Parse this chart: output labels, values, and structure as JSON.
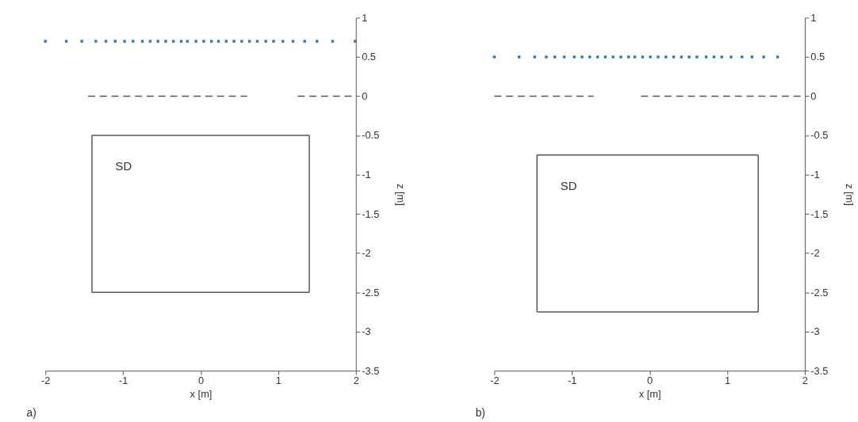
{
  "chart_data": [
    {
      "type": "scatter",
      "xlabel": "x [m]",
      "ylabel": "z [m]",
      "xlim": [
        -2,
        2
      ],
      "ylim": [
        -3.5,
        1
      ],
      "xticks": [
        -2,
        -1,
        0,
        1,
        2
      ],
      "yticks": [
        1,
        0.5,
        0,
        -0.5,
        -1,
        -1.5,
        -2,
        -2.5,
        -3,
        -3.5
      ],
      "grid": false,
      "series": [
        {
          "marker": "square",
          "color": "#2a7ab9",
          "x": [
            -2.0,
            -1.73,
            -1.53,
            -1.35,
            -1.22,
            -1.1,
            -0.98,
            -0.87,
            -0.75,
            -0.65,
            -0.55,
            -0.45,
            -0.35,
            -0.25,
            -0.17,
            -0.06,
            0.04,
            0.14,
            0.23,
            0.33,
            0.43,
            0.53,
            0.63,
            0.73,
            0.84,
            0.94,
            1.06,
            1.19,
            1.34,
            1.5,
            1.7,
            1.99
          ],
          "values": [
            0.7,
            0.7,
            0.7,
            0.7,
            0.7,
            0.7,
            0.7,
            0.7,
            0.7,
            0.7,
            0.7,
            0.7,
            0.7,
            0.7,
            0.7,
            0.7,
            0.7,
            0.7,
            0.7,
            0.7,
            0.7,
            0.7,
            0.7,
            0.7,
            0.7,
            0.7,
            0.7,
            0.7,
            0.7,
            0.7,
            0.7,
            0.7
          ]
        },
        {
          "type": "line",
          "line_style": "dashed",
          "color": "#555555",
          "x": [
            -1.45,
            0.6
          ],
          "values": [
            0,
            0
          ]
        },
        {
          "type": "line",
          "line_style": "dashed",
          "color": "#555555",
          "x": [
            1.25,
            2
          ],
          "values": [
            0,
            0
          ]
        },
        {
          "type": "line",
          "line_style": "solid",
          "color": "#555555",
          "x": [
            -1.4,
            1.4
          ],
          "values": [
            -0.5,
            -0.5
          ]
        },
        {
          "type": "line",
          "line_style": "solid",
          "color": "#555555",
          "x": [
            -1.4,
            1.4
          ],
          "values": [
            -2.5,
            -2.5
          ]
        },
        {
          "type": "line",
          "line_style": "solid",
          "color": "#555555",
          "x": [
            -1.4,
            -1.4
          ],
          "values": [
            -0.5,
            -2.5
          ]
        },
        {
          "type": "line",
          "line_style": "solid",
          "color": "#555555",
          "x": [
            1.4,
            1.4
          ],
          "values": [
            -0.5,
            -2.5
          ]
        }
      ],
      "annotations": [
        "SD",
        "a)"
      ]
    },
    {
      "type": "scatter",
      "xlabel": "x [m]",
      "ylabel": "z [m]",
      "xlim": [
        -2,
        2
      ],
      "ylim": [
        -3.5,
        1
      ],
      "xticks": [
        -2,
        -1,
        0,
        1,
        2
      ],
      "yticks": [
        1,
        0.5,
        0,
        -0.5,
        -1,
        -1.5,
        -2,
        -2.5,
        -3,
        -3.5
      ],
      "grid": false,
      "series": [
        {
          "marker": "square",
          "color": "#2a7ab9",
          "x": [
            -2.0,
            -1.68,
            -1.48,
            -1.33,
            -1.22,
            -1.1,
            -0.97,
            -0.87,
            -0.77,
            -0.67,
            -0.57,
            -0.47,
            -0.37,
            -0.27,
            -0.19,
            -0.09,
            0.01,
            0.11,
            0.21,
            0.31,
            0.41,
            0.51,
            0.61,
            0.73,
            0.83,
            0.93,
            1.05,
            1.19,
            1.32,
            1.47,
            1.65
          ],
          "values": [
            0.5,
            0.5,
            0.5,
            0.5,
            0.5,
            0.5,
            0.5,
            0.5,
            0.5,
            0.5,
            0.5,
            0.5,
            0.5,
            0.5,
            0.5,
            0.5,
            0.5,
            0.5,
            0.5,
            0.5,
            0.5,
            0.5,
            0.5,
            0.5,
            0.5,
            0.5,
            0.5,
            0.5,
            0.5,
            0.5,
            0.5
          ]
        },
        {
          "type": "line",
          "line_style": "dashed",
          "color": "#555555",
          "x": [
            -2,
            -0.72
          ],
          "values": [
            0,
            0
          ]
        },
        {
          "type": "line",
          "line_style": "dashed",
          "color": "#555555",
          "x": [
            -0.11,
            2
          ],
          "values": [
            0,
            0
          ]
        },
        {
          "type": "line",
          "line_style": "solid",
          "color": "#555555",
          "x": [
            -1.45,
            1.4
          ],
          "values": [
            -0.75,
            -0.75
          ]
        },
        {
          "type": "line",
          "line_style": "solid",
          "color": "#555555",
          "x": [
            -1.45,
            1.4
          ],
          "values": [
            -2.75,
            -2.75
          ]
        },
        {
          "type": "line",
          "line_style": "solid",
          "color": "#555555",
          "x": [
            -1.45,
            -1.45
          ],
          "values": [
            -0.75,
            -2.75
          ]
        },
        {
          "type": "line",
          "line_style": "solid",
          "color": "#555555",
          "x": [
            1.4,
            1.4
          ],
          "values": [
            -0.75,
            -2.75
          ]
        }
      ],
      "annotations": [
        "SD",
        "b)"
      ]
    }
  ]
}
